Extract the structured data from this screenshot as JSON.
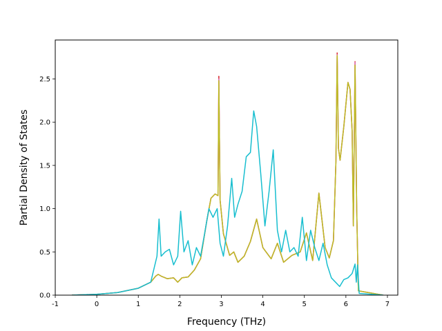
{
  "chart_data": {
    "type": "line",
    "xlabel": "Frequency (THz)",
    "ylabel": "Partial Density of States",
    "xlim": [
      -1,
      7.25
    ],
    "ylim": [
      0,
      2.95
    ],
    "xticks": [
      "-1",
      "0",
      "1",
      "2",
      "3",
      "4",
      "5",
      "6",
      "7"
    ],
    "xtick_values": [
      -1,
      0,
      1,
      2,
      3,
      4,
      5,
      6,
      7
    ],
    "yticks": [
      "0.0",
      "0.5",
      "1.0",
      "1.5",
      "2.0",
      "2.5"
    ],
    "ytick_values": [
      0,
      0.5,
      1.0,
      1.5,
      2.0,
      2.5
    ],
    "grid": false,
    "legend": "none",
    "series": [
      {
        "color": "#d62728",
        "x": [
          -0.6,
          0.0,
          0.5,
          1.0,
          1.3,
          1.42,
          1.48,
          1.55,
          1.7,
          1.85,
          1.95,
          2.05,
          2.2,
          2.35,
          2.5,
          2.65,
          2.75,
          2.85,
          2.92,
          2.94,
          2.97,
          3.05,
          3.2,
          3.3,
          3.4,
          3.55,
          3.7,
          3.85,
          4.0,
          4.2,
          4.35,
          4.5,
          4.7,
          4.9,
          5.05,
          5.2,
          5.35,
          5.5,
          5.6,
          5.7,
          5.76,
          5.79,
          5.82,
          5.86,
          5.95,
          6.05,
          6.1,
          6.15,
          6.18,
          6.22,
          6.26,
          6.3,
          6.9
        ],
        "values": [
          0,
          0.01,
          0.03,
          0.08,
          0.15,
          0.22,
          0.24,
          0.22,
          0.19,
          0.2,
          0.15,
          0.2,
          0.21,
          0.29,
          0.42,
          0.86,
          1.12,
          1.17,
          1.15,
          2.53,
          1.1,
          0.71,
          0.46,
          0.5,
          0.38,
          0.45,
          0.62,
          0.88,
          0.55,
          0.42,
          0.6,
          0.38,
          0.46,
          0.5,
          0.72,
          0.4,
          1.18,
          0.55,
          0.43,
          0.63,
          1.55,
          2.8,
          1.7,
          1.56,
          1.95,
          2.46,
          2.38,
          1.9,
          0.8,
          2.7,
          1.0,
          0.05,
          0
        ]
      },
      {
        "color": "#e377c2",
        "x": [
          -0.6,
          0.0,
          0.5,
          1.0,
          1.3,
          1.42,
          1.48,
          1.55,
          1.7,
          1.85,
          1.95,
          2.05,
          2.2,
          2.35,
          2.5,
          2.65,
          2.75,
          2.85,
          2.92,
          2.94,
          2.97,
          3.05,
          3.2,
          3.3,
          3.4,
          3.55,
          3.7,
          3.85,
          4.0,
          4.2,
          4.35,
          4.5,
          4.7,
          4.9,
          5.05,
          5.2,
          5.35,
          5.5,
          5.6,
          5.7,
          5.76,
          5.79,
          5.82,
          5.86,
          5.95,
          6.05,
          6.1,
          6.15,
          6.18,
          6.22,
          6.26,
          6.3,
          6.9
        ],
        "values": [
          0,
          0.01,
          0.03,
          0.08,
          0.15,
          0.22,
          0.24,
          0.22,
          0.19,
          0.2,
          0.15,
          0.2,
          0.21,
          0.29,
          0.42,
          0.86,
          1.12,
          1.17,
          1.15,
          2.5,
          1.1,
          0.71,
          0.46,
          0.5,
          0.38,
          0.45,
          0.62,
          0.88,
          0.55,
          0.42,
          0.6,
          0.38,
          0.46,
          0.5,
          0.72,
          0.4,
          1.18,
          0.55,
          0.43,
          0.63,
          1.55,
          2.78,
          1.7,
          1.56,
          1.95,
          2.46,
          2.38,
          1.9,
          0.8,
          2.69,
          1.0,
          0.05,
          0
        ]
      },
      {
        "color": "#bcbd22",
        "x": [
          -0.6,
          0.0,
          0.5,
          1.0,
          1.3,
          1.42,
          1.48,
          1.55,
          1.7,
          1.85,
          1.95,
          2.05,
          2.2,
          2.35,
          2.5,
          2.65,
          2.75,
          2.85,
          2.92,
          2.94,
          2.97,
          3.05,
          3.2,
          3.3,
          3.4,
          3.55,
          3.7,
          3.85,
          4.0,
          4.2,
          4.35,
          4.5,
          4.7,
          4.9,
          5.05,
          5.2,
          5.35,
          5.5,
          5.6,
          5.7,
          5.76,
          5.79,
          5.82,
          5.86,
          5.95,
          6.05,
          6.1,
          6.15,
          6.18,
          6.22,
          6.26,
          6.3,
          6.9
        ],
        "values": [
          0,
          0.01,
          0.03,
          0.08,
          0.15,
          0.22,
          0.24,
          0.22,
          0.19,
          0.2,
          0.15,
          0.2,
          0.21,
          0.29,
          0.42,
          0.86,
          1.12,
          1.17,
          1.15,
          2.48,
          1.1,
          0.71,
          0.46,
          0.5,
          0.38,
          0.45,
          0.62,
          0.88,
          0.55,
          0.42,
          0.6,
          0.38,
          0.46,
          0.5,
          0.72,
          0.4,
          1.18,
          0.55,
          0.43,
          0.63,
          1.55,
          2.77,
          1.7,
          1.56,
          1.95,
          2.46,
          2.38,
          1.9,
          0.8,
          2.66,
          1.0,
          0.05,
          0
        ]
      },
      {
        "color": "#17becf",
        "x": [
          -0.6,
          0.0,
          0.5,
          1.0,
          1.3,
          1.45,
          1.5,
          1.55,
          1.65,
          1.75,
          1.85,
          1.95,
          2.02,
          2.1,
          2.2,
          2.3,
          2.4,
          2.5,
          2.6,
          2.7,
          2.8,
          2.9,
          2.97,
          3.05,
          3.15,
          3.25,
          3.32,
          3.4,
          3.5,
          3.6,
          3.7,
          3.78,
          3.85,
          3.95,
          4.05,
          4.15,
          4.25,
          4.35,
          4.45,
          4.55,
          4.65,
          4.75,
          4.85,
          4.95,
          5.05,
          5.15,
          5.25,
          5.35,
          5.45,
          5.55,
          5.65,
          5.75,
          5.85,
          5.95,
          6.05,
          6.15,
          6.22,
          6.25,
          6.28,
          6.32,
          6.9
        ],
        "values": [
          0,
          0.01,
          0.03,
          0.08,
          0.15,
          0.45,
          0.88,
          0.45,
          0.5,
          0.53,
          0.35,
          0.45,
          0.97,
          0.5,
          0.63,
          0.35,
          0.55,
          0.45,
          0.72,
          1.0,
          0.9,
          1.0,
          0.6,
          0.45,
          0.8,
          1.35,
          0.9,
          1.05,
          1.2,
          1.6,
          1.65,
          2.13,
          1.95,
          1.4,
          0.8,
          1.2,
          1.68,
          0.75,
          0.5,
          0.75,
          0.5,
          0.55,
          0.45,
          0.9,
          0.4,
          0.75,
          0.55,
          0.4,
          0.6,
          0.35,
          0.2,
          0.15,
          0.1,
          0.18,
          0.2,
          0.25,
          0.36,
          0.15,
          0.35,
          0.02,
          0
        ]
      }
    ]
  }
}
